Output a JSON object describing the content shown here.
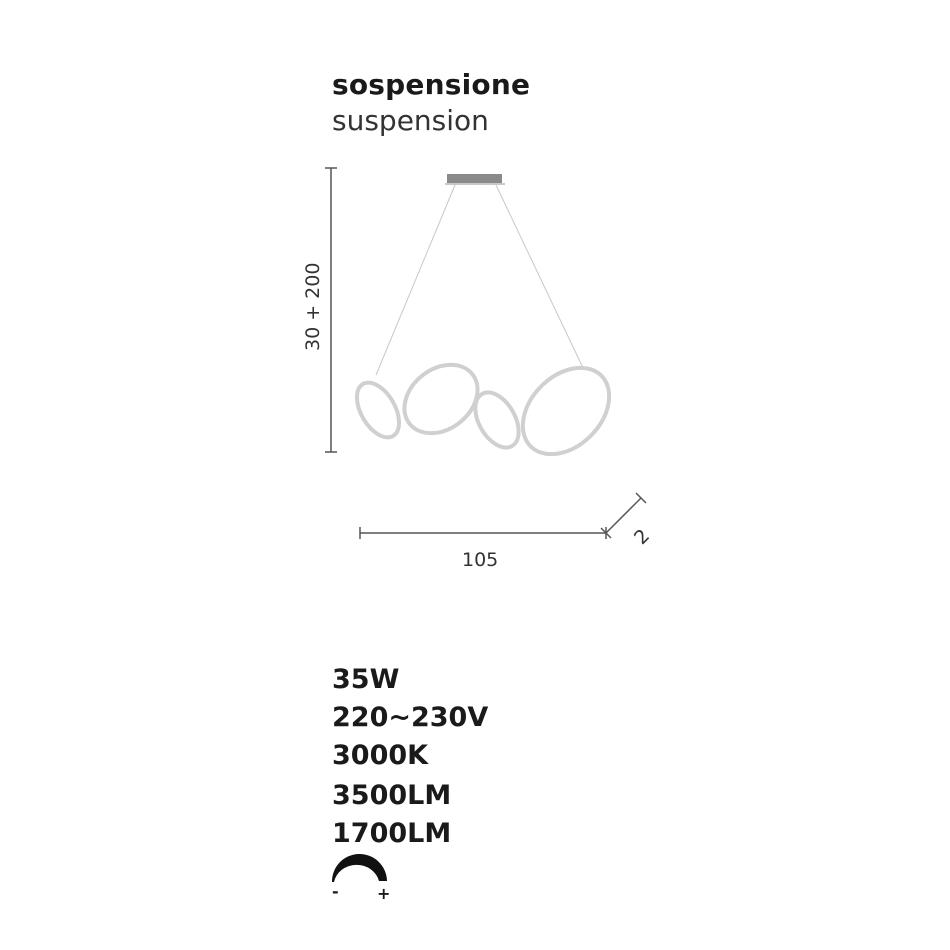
{
  "header": {
    "title": "sospensione",
    "subtitle": "suspension"
  },
  "dimensions": {
    "height": "30 + 200",
    "width": "105",
    "depth": "2"
  },
  "specs": [
    "35W",
    "220~230V",
    "3000K",
    "3500LM",
    "1700LM"
  ],
  "dimmer": {
    "icon": "dimmer-icon",
    "minus": "-",
    "plus": "+"
  }
}
